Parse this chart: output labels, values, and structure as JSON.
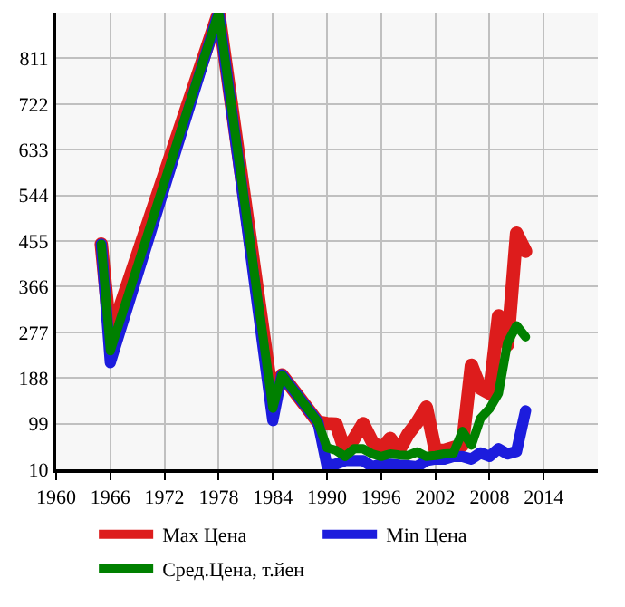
{
  "chart_data": {
    "type": "line",
    "x": [
      1965,
      1966,
      1978,
      1984,
      1985,
      1989,
      1990,
      1991,
      1992,
      1993,
      1994,
      1995,
      1996,
      1997,
      1998,
      1999,
      2000,
      2001,
      2002,
      2003,
      2004,
      2005,
      2006,
      2007,
      2008,
      2009,
      2010,
      2011,
      2012
    ],
    "series": [
      {
        "name": "Max Цена",
        "color": "#dd1c1c",
        "values": [
          449,
          270,
          900,
          143,
          194,
          102,
          99,
          98,
          46,
          70,
          99,
          64,
          49,
          70,
          47,
          79,
          102,
          131,
          47,
          47,
          52,
          57,
          213,
          168,
          158,
          309,
          253,
          470,
          435
        ]
      },
      {
        "name": "Min Цена",
        "color": "#1c1cdd",
        "values": [
          449,
          218,
          900,
          105,
          194,
          102,
          17,
          20,
          27,
          27,
          27,
          15,
          20,
          20,
          18,
          17,
          15,
          27,
          30,
          30,
          35,
          35,
          30,
          42,
          35,
          50,
          40,
          45,
          124
        ]
      },
      {
        "name": "Сред.Цена, т.йен",
        "color": "#008000",
        "values": [
          449,
          241,
          900,
          129,
          194,
          102,
          52,
          47,
          35,
          50,
          50,
          40,
          35,
          40,
          38,
          37,
          44,
          35,
          37,
          40,
          41,
          84,
          57,
          109,
          128,
          158,
          257,
          290,
          268
        ]
      }
    ],
    "xlim": [
      1960,
      2020
    ],
    "xticks": [
      1960,
      1966,
      1972,
      1978,
      1984,
      1990,
      1996,
      2002,
      2008,
      2014
    ],
    "ylim": [
      10,
      900
    ],
    "yticks": [
      10,
      99,
      188,
      277,
      366,
      455,
      544,
      633,
      722,
      811
    ],
    "grid": true,
    "legend": "bottom",
    "marker": "none",
    "line_style": "solid"
  }
}
